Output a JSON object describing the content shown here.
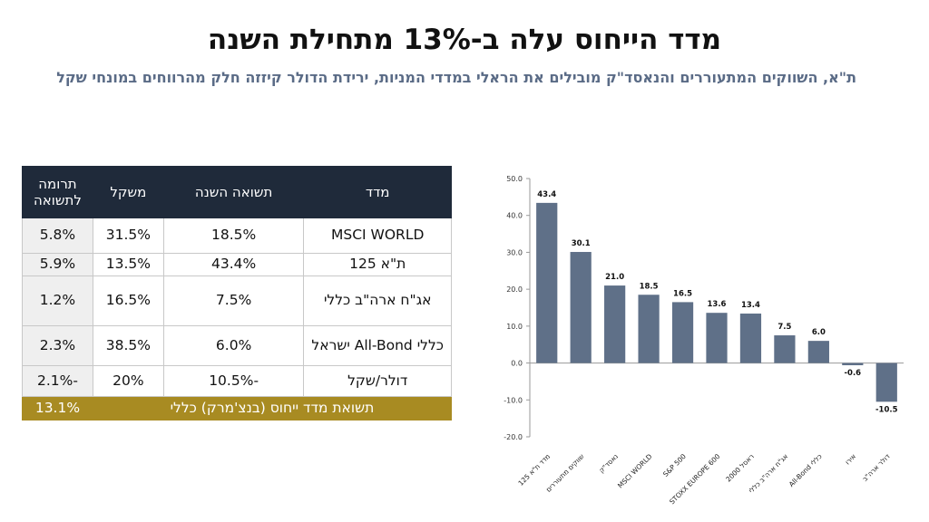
{
  "title": "מדד הייחוס עלה ב-13% מתחילת השנה",
  "subtitle": "ת\"א, השווקים המתעוררים והנאסד\"ק מובילים את הראלי במדדי המניות, ירידת הדולר קיזזה חלק מהרווחים במונחי שקל",
  "table": {
    "headers": {
      "index": "מדד",
      "return": "תשואה השנה",
      "weight": "משקל",
      "contribution": "תרומה לתשואה"
    },
    "rows": [
      {
        "index": "MSCI WORLD",
        "return": "18.5%",
        "weight": "31.5%",
        "contribution": "5.8%"
      },
      {
        "index": "ת\"א 125",
        "return": "43.4%",
        "weight": "13.5%",
        "contribution": "5.9%"
      },
      {
        "index": "אג\"ח ארה\"ב כללי",
        "return": "7.5%",
        "weight": "16.5%",
        "contribution": "1.2%"
      },
      {
        "index": "כללי All-Bond ישראל",
        "return": "6.0%",
        "weight": "38.5%",
        "contribution": "2.3%"
      },
      {
        "index": "דולר/שקל",
        "return": "-10.5%",
        "weight": "20%",
        "contribution": "-2.1%"
      }
    ],
    "total": {
      "label": "תשואת מדד ייחוס (בנצ'מרק) כללי",
      "value": "13.1%"
    }
  },
  "chart_data": {
    "type": "bar",
    "categories": [
      "מדד ת\"א 125",
      "שווקים מתעוררים",
      "נאסד\"ק",
      "MSCI WORLD",
      "S&P 500",
      "STOXX EUROPE 600",
      "ראסל 2000",
      "אג\"ח ארה\"ב כללי",
      "All-Bond כללי",
      "אירו",
      "דולר ארה\"ב"
    ],
    "values": [
      43.4,
      30.1,
      21.0,
      18.5,
      16.5,
      13.6,
      13.4,
      7.5,
      6.0,
      -0.6,
      -10.5
    ],
    "value_labels": [
      "43.4",
      "30.1",
      "21.0",
      "18.5",
      "16.5",
      "13.6",
      "13.4",
      "7.5",
      "6.0",
      "-0.6",
      "-10.5"
    ],
    "ylim": [
      -20,
      50
    ],
    "yticks": [
      50,
      40,
      30,
      20,
      10,
      0,
      -10,
      -20
    ],
    "ytick_labels": [
      "50.0",
      "40.0",
      "30.0",
      "20.0",
      "10.0",
      "0.0",
      "-10.0",
      "-20.0"
    ],
    "title": "",
    "xlabel": "",
    "ylabel": "",
    "grid": false,
    "bar_color": "#5f7088",
    "axis_color": "#9a9a9a"
  }
}
